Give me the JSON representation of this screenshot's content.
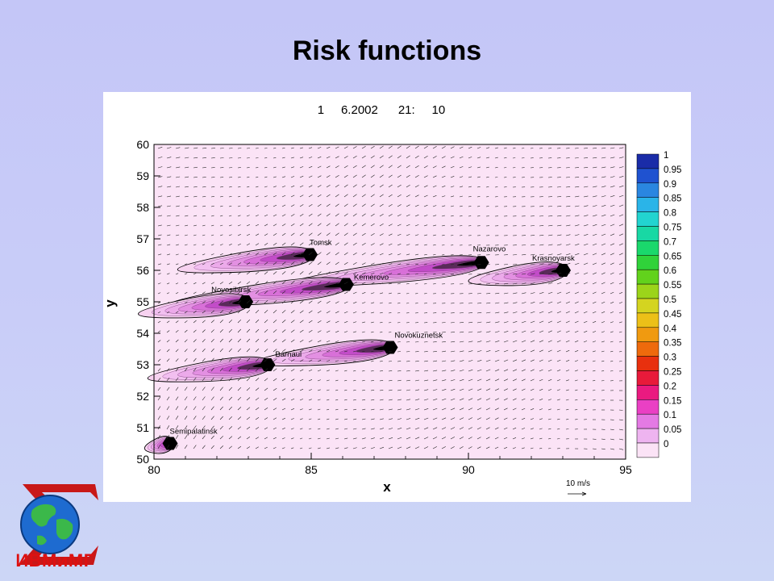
{
  "slide": {
    "title": "Risk functions",
    "logo_text": "ИВМиМГ"
  },
  "chart_data": {
    "type": "contour",
    "title": "1     6.2002      21:     10",
    "xlabel": "x",
    "ylabel": "y",
    "xlim": [
      80,
      95
    ],
    "ylim": [
      50,
      60
    ],
    "x_ticks": [
      "80",
      "85",
      "90",
      "95"
    ],
    "y_ticks": [
      "50",
      "51",
      "52",
      "53",
      "54",
      "55",
      "56",
      "57",
      "58",
      "59",
      "60"
    ],
    "vector_legend": "10 m/s",
    "grid": false,
    "legend_position": "right",
    "colorbar_levels": [
      "1",
      "0.95",
      "0.9",
      "0.85",
      "0.8",
      "0.75",
      "0.7",
      "0.65",
      "0.6",
      "0.55",
      "0.5",
      "0.45",
      "0.4",
      "0.35",
      "0.3",
      "0.25",
      "0.2",
      "0.15",
      "0.1",
      "0.05",
      "0"
    ],
    "colorbar_colors": [
      "#1a2ca8",
      "#1f52d0",
      "#2a86e0",
      "#2ab4e8",
      "#22d4d0",
      "#18d8a4",
      "#1ad86c",
      "#30d23a",
      "#62d21c",
      "#9cd41a",
      "#d4d420",
      "#ecc018",
      "#f09a10",
      "#ee6a0c",
      "#e8300e",
      "#e81a3a",
      "#ea1a80",
      "#ea40c4",
      "#e47ae4",
      "#eeb4f0",
      "#fbe3f6"
    ],
    "cities": [
      {
        "name": "Tomsk",
        "x": 84.95,
        "y": 56.5
      },
      {
        "name": "Nazarovo",
        "x": 90.4,
        "y": 56.25
      },
      {
        "name": "Krasnoyarsk",
        "x": 93.0,
        "y": 56.0
      },
      {
        "name": "Kemerovo",
        "x": 86.1,
        "y": 55.55
      },
      {
        "name": "Novosibirsk",
        "x": 82.9,
        "y": 55.0
      },
      {
        "name": "Novokuznetsk",
        "x": 87.5,
        "y": 53.55
      },
      {
        "name": "Barnaul",
        "x": 83.6,
        "y": 53.0
      },
      {
        "name": "Semipalatinsk",
        "x": 80.5,
        "y": 50.5
      }
    ]
  }
}
